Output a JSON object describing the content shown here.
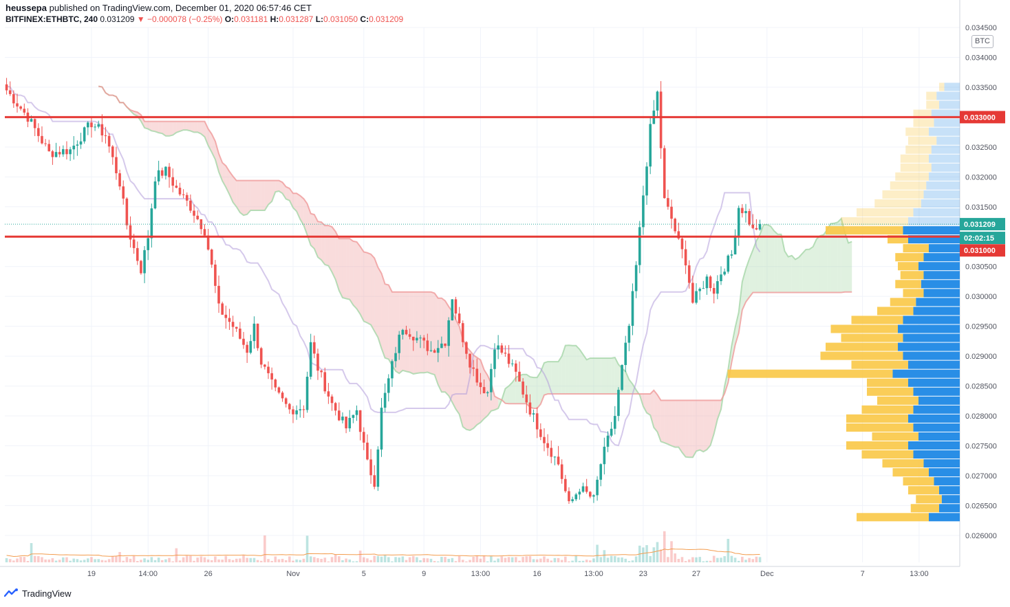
{
  "header": {
    "publisher": "heussepa",
    "publish_text": "published on TradingView.com, December 01, 2020 06:57:46 CET",
    "symbol": "BITFINEX:ETHBTC, 240",
    "last": "0.031209",
    "change": "▼ −0.000078 (−0.25%)",
    "o_label": "O:",
    "o": "0.031181",
    "h_label": "H:",
    "h": "0.031287",
    "l_label": "L:",
    "l": "0.031050",
    "c_label": "C:",
    "c": "0.031209"
  },
  "currency_button": "BTC",
  "footer": {
    "brand": "TradingView"
  },
  "colors": {
    "up": "#26a69a",
    "down": "#ef5350",
    "level": "#e53935",
    "kumo_bull": "#a5d6a7",
    "kumo_bear": "#ef9a9a",
    "kijun": "#b39ddb",
    "vp_up": "#1e88e5",
    "vp_down": "#f9c846",
    "vol_ma": "#f39c4d"
  },
  "chart_data": {
    "type": "candlestick",
    "y_axis": {
      "min": 0.02555,
      "max": 0.0345,
      "ticks": [
        "0.034500",
        "0.034000",
        "0.033500",
        "0.033000",
        "0.032500",
        "0.032000",
        "0.031500",
        "0.031000",
        "0.030500",
        "0.030000",
        "0.029500",
        "0.029000",
        "0.028500",
        "0.028000",
        "0.027500",
        "0.027000",
        "0.026500",
        "0.026000"
      ]
    },
    "x_axis": {
      "tick_labels": [
        "19",
        "14:00",
        "26",
        "Nov",
        "5",
        "9",
        "13:00",
        "16",
        "13:00",
        "23",
        "27",
        "Dec",
        "7",
        "13:00"
      ],
      "tick_bar_index": [
        24,
        40,
        57,
        81,
        101,
        118,
        134,
        150,
        166,
        180,
        195,
        215,
        242,
        258
      ]
    },
    "levels": [
      {
        "price": 0.033,
        "label": "0.033000"
      },
      {
        "price": 0.031,
        "label": "0.031000"
      }
    ],
    "last_price_label": "0.031209",
    "countdown_label": "02:02:15",
    "price_path": [
      [
        0,
        0.03345
      ],
      [
        6,
        0.033
      ],
      [
        12,
        0.0324
      ],
      [
        18,
        0.03245
      ],
      [
        24,
        0.0329
      ],
      [
        28,
        0.0327
      ],
      [
        32,
        0.0319
      ],
      [
        34,
        0.0312
      ],
      [
        36,
        0.0308
      ],
      [
        38,
        0.03045
      ],
      [
        40,
        0.031
      ],
      [
        42,
        0.032
      ],
      [
        45,
        0.0321
      ],
      [
        48,
        0.0318
      ],
      [
        52,
        0.0315
      ],
      [
        56,
        0.0311
      ],
      [
        58,
        0.0305
      ],
      [
        60,
        0.0298
      ],
      [
        64,
        0.0295
      ],
      [
        68,
        0.0291
      ],
      [
        70,
        0.0295
      ],
      [
        72,
        0.0289
      ],
      [
        76,
        0.0284
      ],
      [
        80,
        0.0281
      ],
      [
        84,
        0.02815
      ],
      [
        86,
        0.0292
      ],
      [
        88,
        0.0288
      ],
      [
        92,
        0.0282
      ],
      [
        96,
        0.0278
      ],
      [
        99,
        0.0281
      ],
      [
        102,
        0.0272
      ],
      [
        104,
        0.0269
      ],
      [
        106,
        0.0281
      ],
      [
        108,
        0.0286
      ],
      [
        110,
        0.0291
      ],
      [
        112,
        0.0295
      ],
      [
        116,
        0.0293
      ],
      [
        120,
        0.0291
      ],
      [
        124,
        0.02925
      ],
      [
        126,
        0.03
      ],
      [
        128,
        0.0295
      ],
      [
        131,
        0.0289
      ],
      [
        134,
        0.0285
      ],
      [
        136,
        0.0284
      ],
      [
        138,
        0.0292
      ],
      [
        141,
        0.029
      ],
      [
        144,
        0.0287
      ],
      [
        148,
        0.0281
      ],
      [
        152,
        0.0276
      ],
      [
        156,
        0.0272
      ],
      [
        159,
        0.0265
      ],
      [
        162,
        0.0268
      ],
      [
        166,
        0.0266
      ],
      [
        168,
        0.0272
      ],
      [
        170,
        0.0276
      ],
      [
        172,
        0.028
      ],
      [
        174,
        0.0288
      ],
      [
        176,
        0.0295
      ],
      [
        178,
        0.0305
      ],
      [
        180,
        0.0317
      ],
      [
        182,
        0.0328
      ],
      [
        184,
        0.0334
      ],
      [
        186,
        0.0316
      ],
      [
        188,
        0.0313
      ],
      [
        190,
        0.0309
      ],
      [
        192,
        0.0306
      ],
      [
        194,
        0.0299
      ],
      [
        196,
        0.0301
      ],
      [
        198,
        0.0303
      ],
      [
        200,
        0.0301
      ],
      [
        202,
        0.0304
      ],
      [
        205,
        0.0307
      ],
      [
        207,
        0.0315
      ],
      [
        209,
        0.0314
      ],
      [
        211,
        0.0311
      ],
      [
        213,
        0.03121
      ]
    ],
    "volume_profile": [
      [
        0.03365,
        0.0,
        0.0
      ],
      [
        0.0335,
        0.3,
        0.1
      ],
      [
        0.03335,
        0.45,
        0.2
      ],
      [
        0.0332,
        0.4,
        0.25
      ],
      [
        0.03305,
        0.55,
        0.35
      ],
      [
        0.0329,
        0.5,
        0.4
      ],
      [
        0.03275,
        0.6,
        0.45
      ],
      [
        0.0326,
        0.45,
        0.55
      ],
      [
        0.03245,
        0.55,
        0.5
      ],
      [
        0.0323,
        0.6,
        0.55
      ],
      [
        0.03215,
        0.55,
        0.6
      ],
      [
        0.032,
        0.6,
        0.65
      ],
      [
        0.03185,
        0.65,
        0.7
      ],
      [
        0.0317,
        0.7,
        0.8
      ],
      [
        0.03155,
        0.75,
        0.9
      ],
      [
        0.0314,
        0.9,
        1.1
      ],
      [
        0.03125,
        1.0,
        1.3
      ],
      [
        0.0311,
        1.1,
        1.5
      ],
      [
        0.03095,
        1.0,
        0.4
      ],
      [
        0.0308,
        0.6,
        0.5
      ],
      [
        0.03065,
        0.7,
        0.55
      ],
      [
        0.0305,
        0.8,
        0.4
      ],
      [
        0.03035,
        0.7,
        0.45
      ],
      [
        0.0302,
        0.75,
        0.5
      ],
      [
        0.03005,
        0.7,
        0.4
      ],
      [
        0.0299,
        0.85,
        0.5
      ],
      [
        0.02975,
        0.9,
        0.7
      ],
      [
        0.0296,
        1.1,
        1.0
      ],
      [
        0.02945,
        1.2,
        1.3
      ],
      [
        0.0293,
        1.1,
        1.2
      ],
      [
        0.02915,
        1.2,
        1.4
      ],
      [
        0.029,
        1.1,
        1.6
      ],
      [
        0.02885,
        1.0,
        1.1
      ],
      [
        0.0287,
        1.3,
        3.2
      ],
      [
        0.02855,
        1.0,
        0.8
      ],
      [
        0.0284,
        0.9,
        0.9
      ],
      [
        0.02825,
        0.8,
        0.8
      ],
      [
        0.0281,
        0.9,
        1.0
      ],
      [
        0.02795,
        1.0,
        1.2
      ],
      [
        0.0278,
        0.9,
        1.3
      ],
      [
        0.02765,
        0.8,
        0.9
      ],
      [
        0.0275,
        1.0,
        1.2
      ],
      [
        0.02735,
        0.9,
        1.0
      ],
      [
        0.0272,
        0.7,
        0.8
      ],
      [
        0.02705,
        0.6,
        0.7
      ],
      [
        0.0269,
        0.5,
        0.6
      ],
      [
        0.02675,
        0.4,
        0.6
      ],
      [
        0.0266,
        0.35,
        0.5
      ],
      [
        0.02645,
        0.4,
        0.55
      ],
      [
        0.0263,
        0.6,
        1.4
      ],
      [
        0.02615,
        0.0,
        0.0
      ]
    ]
  }
}
